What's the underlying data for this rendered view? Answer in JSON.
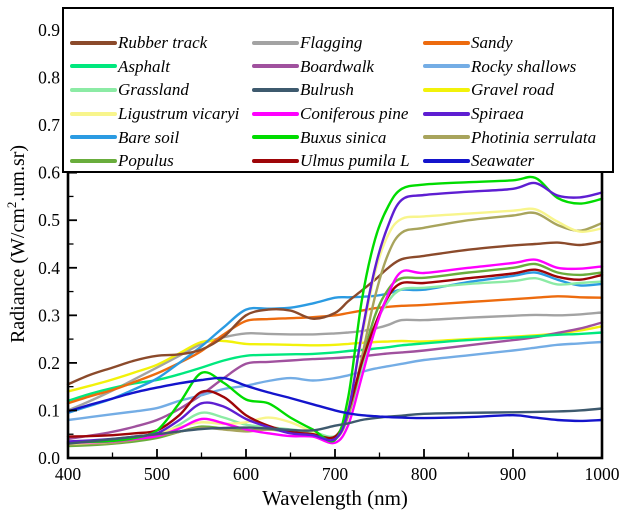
{
  "chart_data": {
    "type": "line",
    "title": "",
    "xlabel": "Wavelength (nm)",
    "ylabel_pre": "Radiance (W/cm",
    "ylabel_sup": "2",
    "ylabel_post": ".um.sr)",
    "xlim": [
      400,
      1000
    ],
    "ylim": [
      0.0,
      0.9
    ],
    "grid": false,
    "legend_position": "top",
    "x_ticks": [
      "400",
      "500",
      "600",
      "700",
      "800",
      "900",
      "1000"
    ],
    "y_ticks": [
      "0.0",
      "0.1",
      "0.2",
      "0.3",
      "0.4",
      "0.5",
      "0.6",
      "0.7",
      "0.8",
      "0.9"
    ],
    "x": [
      400,
      425,
      450,
      475,
      500,
      525,
      550,
      575,
      600,
      625,
      650,
      675,
      700,
      715,
      730,
      745,
      760,
      775,
      800,
      850,
      900,
      925,
      950,
      975,
      1000
    ],
    "series": [
      {
        "name": "Rubber track",
        "color": "#8B4A2B",
        "values": [
          0.155,
          0.175,
          0.19,
          0.205,
          0.215,
          0.218,
          0.228,
          0.255,
          0.3,
          0.312,
          0.31,
          0.293,
          0.305,
          0.33,
          0.352,
          0.375,
          0.4,
          0.418,
          0.425,
          0.438,
          0.447,
          0.45,
          0.453,
          0.448,
          0.455
        ]
      },
      {
        "name": "Flagging",
        "color": "#A3A3A3",
        "values": [
          0.1,
          0.12,
          0.142,
          0.166,
          0.19,
          0.215,
          0.24,
          0.254,
          0.262,
          0.261,
          0.26,
          0.26,
          0.262,
          0.264,
          0.267,
          0.272,
          0.28,
          0.29,
          0.29,
          0.295,
          0.299,
          0.301,
          0.3,
          0.302,
          0.306
        ]
      },
      {
        "name": "Sandy",
        "color": "#ED6B0E",
        "values": [
          0.115,
          0.13,
          0.143,
          0.16,
          0.178,
          0.2,
          0.225,
          0.26,
          0.288,
          0.292,
          0.294,
          0.296,
          0.3,
          0.305,
          0.31,
          0.315,
          0.318,
          0.32,
          0.322,
          0.328,
          0.334,
          0.337,
          0.34,
          0.338,
          0.337
        ]
      },
      {
        "name": "Asphalt",
        "color": "#00E87E",
        "values": [
          0.12,
          0.135,
          0.147,
          0.157,
          0.164,
          0.176,
          0.19,
          0.205,
          0.215,
          0.217,
          0.218,
          0.219,
          0.222,
          0.225,
          0.227,
          0.23,
          0.233,
          0.237,
          0.241,
          0.248,
          0.253,
          0.256,
          0.259,
          0.261,
          0.264
        ]
      },
      {
        "name": "Boardwalk",
        "color": "#A0519E",
        "values": [
          0.04,
          0.047,
          0.055,
          0.066,
          0.08,
          0.103,
          0.133,
          0.168,
          0.198,
          0.202,
          0.205,
          0.208,
          0.21,
          0.212,
          0.214,
          0.217,
          0.22,
          0.222,
          0.226,
          0.237,
          0.248,
          0.254,
          0.263,
          0.272,
          0.285
        ]
      },
      {
        "name": "Rocky shallows",
        "color": "#74ADE5",
        "values": [
          0.08,
          0.086,
          0.092,
          0.098,
          0.105,
          0.12,
          0.132,
          0.145,
          0.152,
          0.162,
          0.168,
          0.163,
          0.168,
          0.174,
          0.181,
          0.188,
          0.193,
          0.198,
          0.206,
          0.216,
          0.226,
          0.232,
          0.238,
          0.241,
          0.244
        ]
      },
      {
        "name": "Grassland",
        "color": "#8CEBA5",
        "values": [
          0.03,
          0.032,
          0.034,
          0.038,
          0.045,
          0.07,
          0.095,
          0.085,
          0.07,
          0.065,
          0.06,
          0.055,
          0.046,
          0.09,
          0.19,
          0.28,
          0.33,
          0.355,
          0.358,
          0.366,
          0.372,
          0.378,
          0.365,
          0.368,
          0.371
        ]
      },
      {
        "name": "Bulrush",
        "color": "#3E5A6E",
        "values": [
          0.03,
          0.035,
          0.04,
          0.045,
          0.05,
          0.056,
          0.061,
          0.063,
          0.064,
          0.062,
          0.059,
          0.058,
          0.068,
          0.073,
          0.08,
          0.084,
          0.087,
          0.089,
          0.093,
          0.095,
          0.096,
          0.097,
          0.098,
          0.1,
          0.104
        ]
      },
      {
        "name": "Gravel road",
        "color": "#F2F20A",
        "values": [
          0.14,
          0.152,
          0.165,
          0.18,
          0.196,
          0.22,
          0.244,
          0.246,
          0.24,
          0.239,
          0.238,
          0.237,
          0.238,
          0.24,
          0.242,
          0.244,
          0.245,
          0.246,
          0.245,
          0.25,
          0.255,
          0.258,
          0.262,
          0.268,
          0.277
        ]
      },
      {
        "name": "Ligustrum vicaryi",
        "color": "#F8F58C",
        "values": [
          0.03,
          0.032,
          0.035,
          0.042,
          0.052,
          0.065,
          0.075,
          0.072,
          0.075,
          0.085,
          0.075,
          0.055,
          0.042,
          0.11,
          0.25,
          0.39,
          0.47,
          0.503,
          0.508,
          0.514,
          0.52,
          0.523,
          0.497,
          0.476,
          0.483
        ]
      },
      {
        "name": "Coniferous pine",
        "color": "#FF00FF",
        "values": [
          0.032,
          0.033,
          0.035,
          0.04,
          0.046,
          0.062,
          0.082,
          0.073,
          0.06,
          0.052,
          0.046,
          0.045,
          0.032,
          0.07,
          0.17,
          0.27,
          0.345,
          0.392,
          0.389,
          0.4,
          0.41,
          0.417,
          0.4,
          0.398,
          0.403
        ]
      },
      {
        "name": "Spiraea",
        "color": "#5E1ED2",
        "values": [
          0.035,
          0.037,
          0.04,
          0.045,
          0.052,
          0.08,
          0.115,
          0.108,
          0.082,
          0.065,
          0.052,
          0.048,
          0.04,
          0.1,
          0.26,
          0.4,
          0.49,
          0.543,
          0.553,
          0.56,
          0.566,
          0.578,
          0.552,
          0.548,
          0.558
        ]
      },
      {
        "name": "Bare soil",
        "color": "#2B9BE2",
        "values": [
          0.095,
          0.11,
          0.125,
          0.145,
          0.167,
          0.2,
          0.235,
          0.275,
          0.312,
          0.314,
          0.316,
          0.325,
          0.337,
          0.338,
          0.339,
          0.341,
          0.346,
          0.354,
          0.354,
          0.37,
          0.383,
          0.39,
          0.375,
          0.363,
          0.366
        ]
      },
      {
        "name": "Buxus sinica",
        "color": "#00DC00",
        "values": [
          0.033,
          0.034,
          0.036,
          0.042,
          0.058,
          0.115,
          0.179,
          0.158,
          0.123,
          0.115,
          0.085,
          0.06,
          0.038,
          0.13,
          0.33,
          0.46,
          0.53,
          0.566,
          0.575,
          0.58,
          0.584,
          0.589,
          0.547,
          0.535,
          0.545
        ]
      },
      {
        "name": "Photinia serrulata",
        "color": "#A8A45C",
        "values": [
          0.028,
          0.03,
          0.032,
          0.038,
          0.046,
          0.055,
          0.063,
          0.06,
          0.056,
          0.06,
          0.058,
          0.05,
          0.04,
          0.09,
          0.21,
          0.34,
          0.43,
          0.474,
          0.484,
          0.5,
          0.51,
          0.515,
          0.49,
          0.478,
          0.494
        ]
      },
      {
        "name": "Populus",
        "color": "#69AD3C",
        "values": [
          0.025,
          0.027,
          0.03,
          0.035,
          0.042,
          0.055,
          0.066,
          0.062,
          0.058,
          0.06,
          0.055,
          0.05,
          0.04,
          0.09,
          0.2,
          0.3,
          0.355,
          0.378,
          0.379,
          0.39,
          0.4,
          0.408,
          0.39,
          0.385,
          0.39
        ]
      },
      {
        "name": "Ulmus pumila L",
        "color": "#9E0508",
        "values": [
          0.045,
          0.046,
          0.048,
          0.052,
          0.058,
          0.09,
          0.139,
          0.128,
          0.09,
          0.068,
          0.055,
          0.05,
          0.045,
          0.1,
          0.2,
          0.28,
          0.34,
          0.368,
          0.368,
          0.378,
          0.388,
          0.396,
          0.381,
          0.375,
          0.385
        ]
      },
      {
        "name": "Seawater",
        "color": "#1414CC",
        "values": [
          0.098,
          0.112,
          0.125,
          0.138,
          0.148,
          0.157,
          0.164,
          0.168,
          0.152,
          0.138,
          0.126,
          0.113,
          0.1,
          0.094,
          0.09,
          0.088,
          0.086,
          0.085,
          0.084,
          0.086,
          0.09,
          0.085,
          0.08,
          0.078,
          0.08
        ]
      }
    ],
    "legend_order": [
      "Rubber track",
      "Flagging",
      "Sandy",
      "Asphalt",
      "Boardwalk",
      "Rocky shallows",
      "Grassland",
      "Bulrush",
      "Gravel road",
      "Ligustrum vicaryi",
      "Coniferous pine",
      "Spiraea",
      "Bare soil",
      "Buxus sinica",
      "Photinia serrulata",
      "Populus",
      "Ulmus pumila L",
      "Seawater"
    ],
    "draw_order": [
      "Flagging",
      "Gravel road",
      "Boardwalk",
      "Rocky shallows",
      "Asphalt",
      "Sandy",
      "Bare soil",
      "Rubber track",
      "Grassland",
      "Populus",
      "Photinia serrulata",
      "Ligustrum vicaryi",
      "Ulmus pumila L",
      "Coniferous pine",
      "Buxus sinica",
      "Spiraea",
      "Bulrush",
      "Seawater"
    ]
  }
}
